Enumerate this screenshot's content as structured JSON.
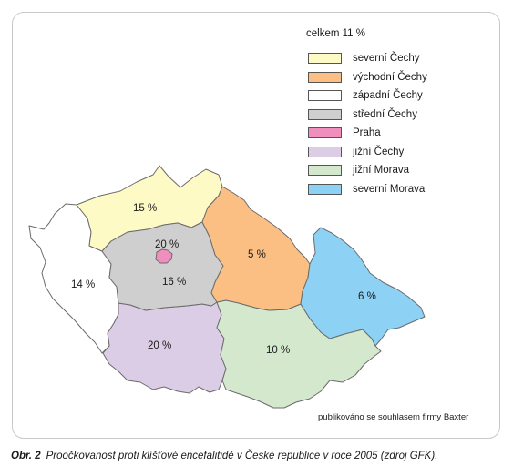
{
  "legend_total": "celkem 11 %",
  "colors": {
    "severni_cechy": "#fdfac6",
    "vychodni_cechy": "#fbbf84",
    "zapadni_cechy": "#ffffff",
    "stredni_cechy": "#cfcfcf",
    "praha": "#f08fbe",
    "jizni_cechy": "#dccde6",
    "jizni_morava": "#d3e8cd",
    "severni_morava": "#8dd1f5"
  },
  "legend": [
    {
      "label": "severní Čechy",
      "color": "#fdfac6"
    },
    {
      "label": "východní Čechy",
      "color": "#fbbf84"
    },
    {
      "label": "západní Čechy",
      "color": "#ffffff"
    },
    {
      "label": "střední Čechy",
      "color": "#cfcfcf"
    },
    {
      "label": "Praha",
      "color": "#f08fbe"
    },
    {
      "label": "jižní Čechy",
      "color": "#dccde6"
    },
    {
      "label": "jižní Morava",
      "color": "#d3e8cd"
    },
    {
      "label": "severní Morava",
      "color": "#8dd1f5"
    }
  ],
  "regions": {
    "severni_cechy": "15 %",
    "vychodni_cechy": "5 %",
    "zapadni_cechy": "14 %",
    "stredni_cechy": "16 %",
    "praha": "20 %",
    "jizni_cechy": "20 %",
    "jizni_morava": "10 %",
    "severni_morava": "6 %"
  },
  "credit": "publikováno se souhlasem firmy Baxter",
  "caption": {
    "number": "Obr. 2",
    "text": "Proočkovanost proti klíšťové encefalitidě v České republice v roce 2005 (zdroj GFK)."
  }
}
